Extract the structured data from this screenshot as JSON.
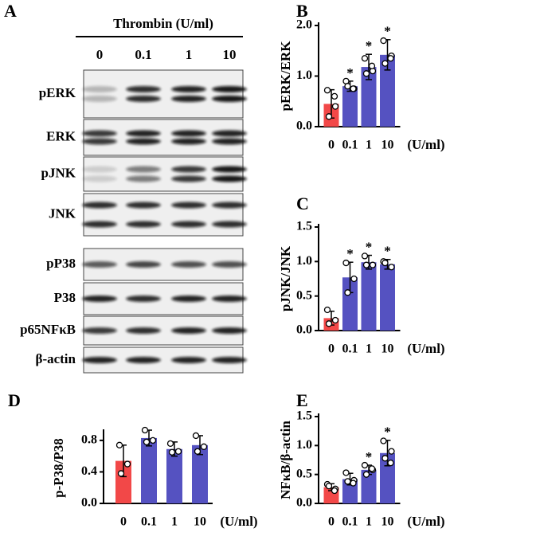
{
  "blot": {
    "panel_label": "A",
    "treatment": "Thrombin (U/ml)",
    "lanes": [
      "0",
      "0.1",
      "1",
      "10"
    ],
    "rows": [
      "pERK",
      "ERK",
      "pJNK",
      "JNK",
      "pP38",
      "P38",
      "p65NFκB",
      "β-actin"
    ]
  },
  "chart_data": [
    {
      "type": "bar",
      "panel_label": "B",
      "y_label": "pERK/ERK",
      "x_label": "(U/ml)",
      "categories": [
        "0",
        "0.1",
        "1",
        "10"
      ],
      "values": [
        0.45,
        0.8,
        1.18,
        1.42
      ],
      "errors": [
        0.28,
        0.1,
        0.25,
        0.3
      ],
      "points": [
        [
          0.72,
          0.4,
          0.2,
          0.6
        ],
        [
          0.9,
          0.75,
          0.8,
          0.75
        ],
        [
          1.35,
          1.1,
          1.05,
          1.2
        ],
        [
          1.7,
          1.4,
          1.25,
          1.35
        ]
      ],
      "significance": [
        null,
        "*",
        "*",
        "*"
      ],
      "colors": [
        "#f24848",
        "#5552c1",
        "#5552c1",
        "#5552c1"
      ],
      "ylim": [
        0,
        2.0
      ],
      "yticks": [
        {
          "value": 0,
          "label": "0.0"
        },
        {
          "value": 1,
          "label": "1.0"
        },
        {
          "value": 2,
          "label": "2.0"
        }
      ]
    },
    {
      "type": "bar",
      "panel_label": "C",
      "y_label": "pJNK/JNK",
      "x_label": "(U/ml)",
      "categories": [
        "0",
        "0.1",
        "1",
        "10"
      ],
      "values": [
        0.18,
        0.77,
        0.99,
        0.96
      ],
      "errors": [
        0.1,
        0.22,
        0.1,
        0.07
      ],
      "points": [
        [
          0.3,
          0.15,
          0.1
        ],
        [
          0.98,
          0.75,
          0.55
        ],
        [
          1.08,
          0.95,
          0.95
        ],
        [
          1.0,
          0.92,
          0.98
        ]
      ],
      "significance": [
        null,
        "*",
        "*",
        "*"
      ],
      "colors": [
        "#f24848",
        "#5552c1",
        "#5552c1",
        "#5552c1"
      ],
      "ylim": [
        0,
        1.5
      ],
      "yticks": [
        {
          "value": 0,
          "label": "0.0"
        },
        0.5,
        {
          "value": 1,
          "label": "1.0"
        },
        1.5
      ]
    },
    {
      "type": "bar",
      "panel_label": "D",
      "y_label": "p-P38/P38",
      "x_label": "(U/ml)",
      "categories": [
        "0",
        "0.1",
        "1",
        "10"
      ],
      "values": [
        0.54,
        0.83,
        0.69,
        0.74
      ],
      "errors": [
        0.2,
        0.1,
        0.09,
        0.12
      ],
      "points": [
        [
          0.74,
          0.5,
          0.38
        ],
        [
          0.93,
          0.8,
          0.78
        ],
        [
          0.76,
          0.66,
          0.65
        ],
        [
          0.86,
          0.72,
          0.66
        ]
      ],
      "significance": [
        null,
        null,
        null,
        null
      ],
      "colors": [
        "#f24848",
        "#5552c1",
        "#5552c1",
        "#5552c1"
      ],
      "ylim": [
        0,
        0.9
      ],
      "yticks": [
        {
          "value": 0,
          "label": "0.0"
        },
        0.4,
        0.8
      ]
    },
    {
      "type": "bar",
      "panel_label": "E",
      "y_label": "NFκB/β-actin",
      "x_label": "(U/ml)",
      "categories": [
        "0",
        "0.1",
        "1",
        "10"
      ],
      "values": [
        0.28,
        0.42,
        0.58,
        0.87
      ],
      "errors": [
        0.06,
        0.1,
        0.08,
        0.22
      ],
      "points": [
        [
          0.33,
          0.25,
          0.3,
          0.22
        ],
        [
          0.53,
          0.4,
          0.38,
          0.35
        ],
        [
          0.66,
          0.58,
          0.5,
          0.6
        ],
        [
          1.08,
          0.9,
          0.78,
          0.7
        ]
      ],
      "significance": [
        null,
        null,
        "*",
        "*"
      ],
      "colors": [
        "#f24848",
        "#5552c1",
        "#5552c1",
        "#5552c1"
      ],
      "ylim": [
        0,
        1.5
      ],
      "yticks": [
        {
          "value": 0,
          "label": "0.0"
        },
        0.5,
        {
          "value": 1,
          "label": "1.0"
        },
        1.5
      ]
    }
  ]
}
